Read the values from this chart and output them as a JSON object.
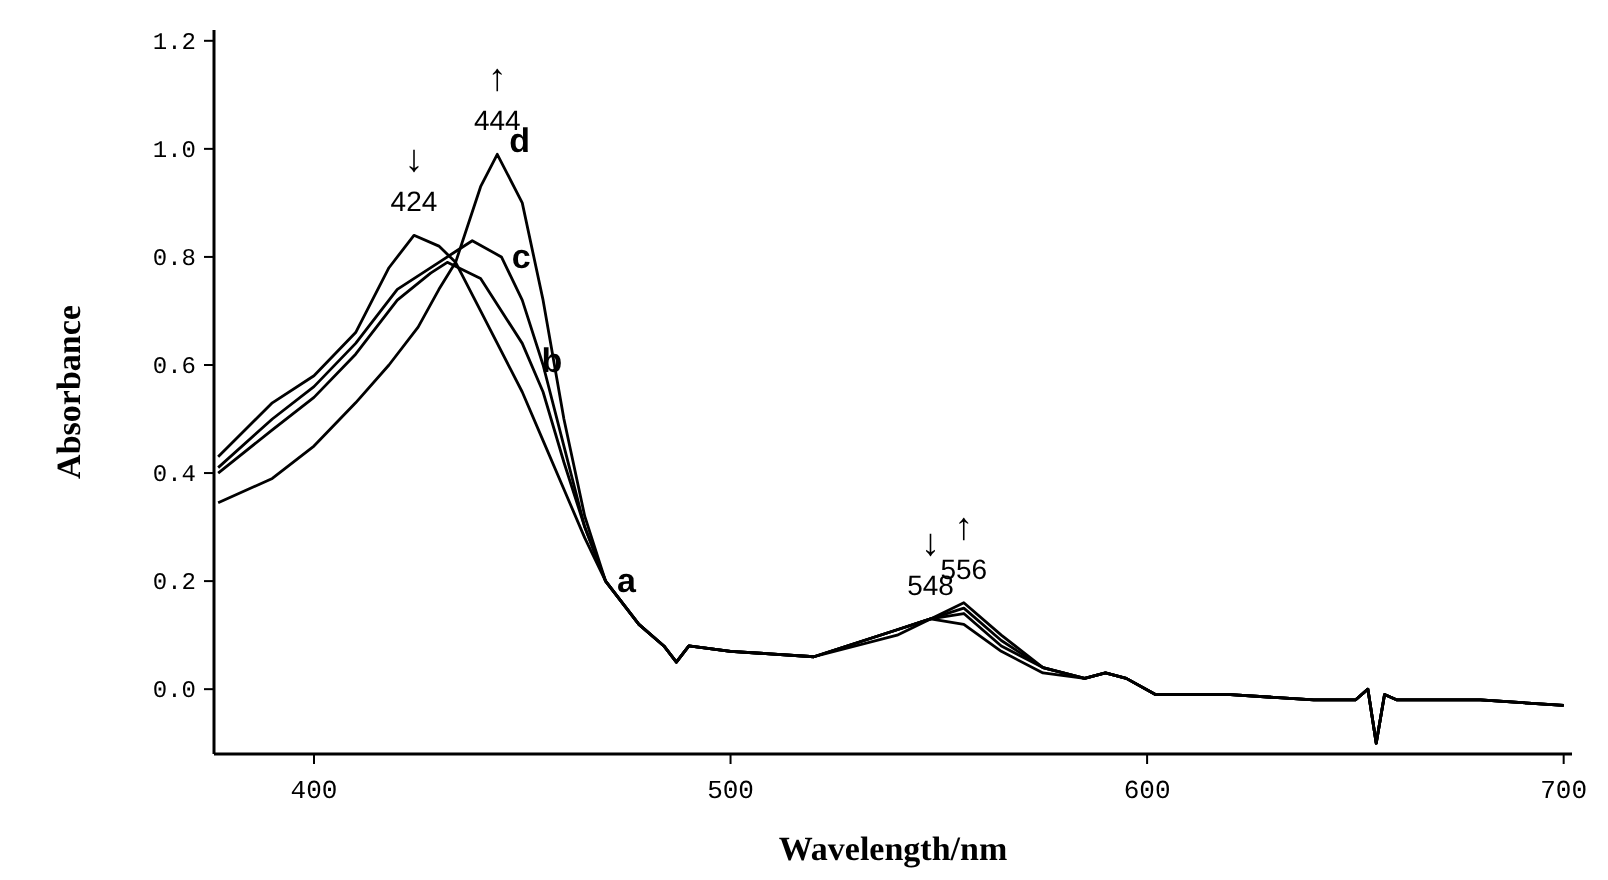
{
  "chart_data": {
    "type": "line",
    "xlabel": "Wavelength/nm",
    "ylabel": "Absorbance",
    "xlim": [
      376,
      702
    ],
    "ylim": [
      -0.12,
      1.22
    ],
    "xticks": [
      400,
      500,
      600,
      700
    ],
    "yticks": [
      {
        "value": 0,
        "label": "0.0"
      },
      {
        "value": 0.2,
        "label": "0.2"
      },
      {
        "value": 0.4,
        "label": "0.4"
      },
      {
        "value": 0.6,
        "label": "0.6"
      },
      {
        "value": 0.8,
        "label": "0.8"
      },
      {
        "value": 1.0,
        "label": "1.0"
      },
      {
        "value": 1.2,
        "label": "1.2"
      }
    ],
    "grid": false,
    "marker": "none",
    "line_style": "solid",
    "series": [
      {
        "name": "a",
        "color": "#000000",
        "x": [
          377,
          390,
          400,
          410,
          418,
          424,
          430,
          434,
          440,
          450,
          455,
          460,
          465,
          470,
          478,
          484,
          487,
          490,
          500,
          520,
          540,
          548,
          556,
          565,
          575,
          585,
          590,
          595,
          602,
          620,
          640,
          650,
          653,
          655,
          657,
          660,
          680,
          700
        ],
        "values": [
          0.43,
          0.53,
          0.58,
          0.66,
          0.78,
          0.84,
          0.82,
          0.79,
          0.7,
          0.55,
          0.46,
          0.37,
          0.28,
          0.2,
          0.12,
          0.08,
          0.05,
          0.08,
          0.07,
          0.06,
          0.11,
          0.13,
          0.12,
          0.07,
          0.03,
          0.02,
          0.03,
          0.02,
          -0.01,
          -0.01,
          -0.02,
          -0.02,
          0.0,
          -0.1,
          -0.01,
          -0.02,
          -0.02,
          -0.03
        ]
      },
      {
        "name": "b",
        "color": "#000000",
        "x": [
          377,
          390,
          400,
          410,
          420,
          428,
          432,
          440,
          450,
          455,
          460,
          465,
          470,
          478,
          484,
          487,
          490,
          500,
          520,
          540,
          548,
          556,
          565,
          575,
          585,
          590,
          595,
          602,
          620,
          640,
          650,
          653,
          655,
          657,
          660,
          680,
          700
        ],
        "values": [
          0.4,
          0.48,
          0.54,
          0.62,
          0.72,
          0.77,
          0.79,
          0.76,
          0.64,
          0.55,
          0.42,
          0.3,
          0.2,
          0.12,
          0.08,
          0.05,
          0.08,
          0.07,
          0.06,
          0.11,
          0.13,
          0.14,
          0.08,
          0.04,
          0.02,
          0.03,
          0.02,
          -0.01,
          -0.01,
          -0.02,
          -0.02,
          0.0,
          -0.1,
          -0.01,
          -0.02,
          -0.02,
          -0.03
        ]
      },
      {
        "name": "c",
        "color": "#000000",
        "x": [
          377,
          390,
          400,
          410,
          420,
          430,
          434,
          438,
          445,
          450,
          455,
          460,
          465,
          470,
          478,
          484,
          487,
          490,
          500,
          520,
          540,
          548,
          556,
          565,
          575,
          585,
          590,
          595,
          602,
          620,
          640,
          650,
          653,
          655,
          657,
          660,
          680,
          700
        ],
        "values": [
          0.41,
          0.5,
          0.56,
          0.64,
          0.74,
          0.79,
          0.81,
          0.83,
          0.8,
          0.72,
          0.6,
          0.45,
          0.3,
          0.2,
          0.12,
          0.08,
          0.05,
          0.08,
          0.07,
          0.06,
          0.11,
          0.13,
          0.15,
          0.09,
          0.04,
          0.02,
          0.03,
          0.02,
          -0.01,
          -0.01,
          -0.02,
          -0.02,
          0.0,
          -0.1,
          -0.01,
          -0.02,
          -0.02,
          -0.03
        ]
      },
      {
        "name": "d",
        "color": "#000000",
        "x": [
          377,
          390,
          400,
          410,
          418,
          425,
          430,
          434,
          440,
          444,
          450,
          455,
          460,
          465,
          470,
          478,
          484,
          487,
          490,
          500,
          520,
          540,
          548,
          556,
          565,
          575,
          585,
          590,
          595,
          602,
          620,
          640,
          650,
          653,
          655,
          657,
          660,
          680,
          700
        ],
        "values": [
          0.345,
          0.39,
          0.45,
          0.53,
          0.6,
          0.67,
          0.74,
          0.79,
          0.93,
          0.99,
          0.9,
          0.72,
          0.5,
          0.32,
          0.2,
          0.12,
          0.08,
          0.05,
          0.08,
          0.07,
          0.06,
          0.1,
          0.13,
          0.16,
          0.1,
          0.04,
          0.02,
          0.03,
          0.02,
          -0.01,
          -0.01,
          -0.02,
          -0.02,
          0.0,
          -0.1,
          -0.01,
          -0.02,
          -0.02,
          -0.03
        ]
      }
    ],
    "annotations": [
      {
        "text": "↓ 424",
        "x": 424,
        "y": 0.84
      },
      {
        "text": "↑ 444",
        "x": 444,
        "y": 0.99
      },
      {
        "text": "↓ 548",
        "x": 548,
        "y": 0.13
      },
      {
        "text": "↑ 556",
        "x": 556,
        "y": 0.16
      }
    ]
  }
}
